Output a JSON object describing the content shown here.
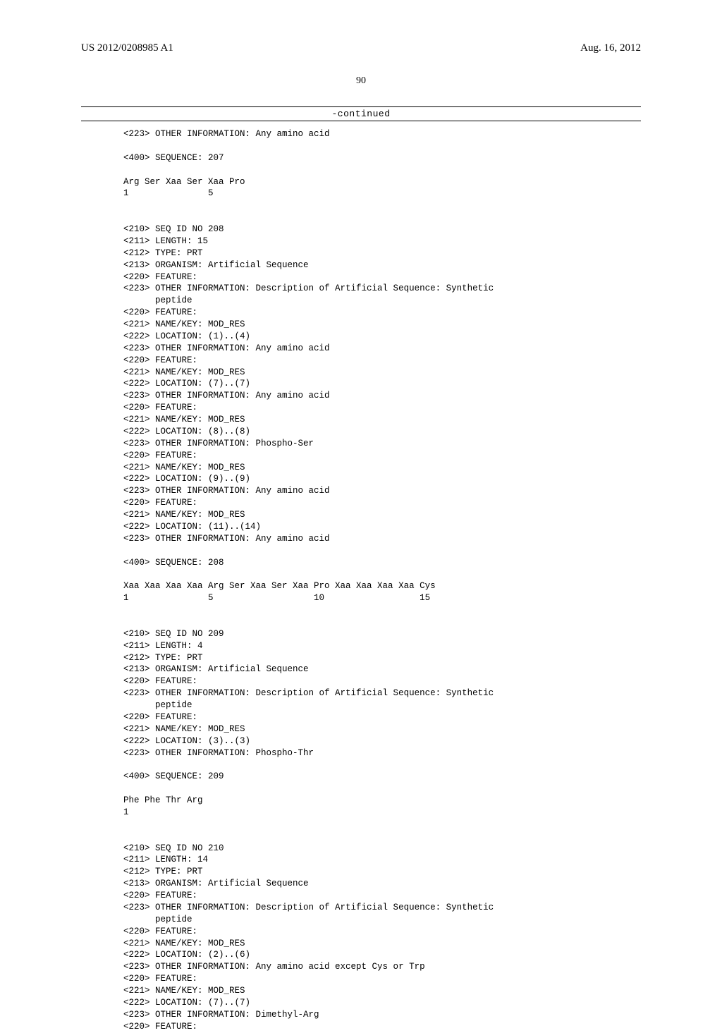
{
  "header": {
    "left": "US 2012/0208985 A1",
    "right": "Aug. 16, 2012"
  },
  "page_number": "90",
  "continued": "-continued",
  "lines": [
    {
      "t": "<223> OTHER INFORMATION: Any amino acid"
    },
    {
      "t": ""
    },
    {
      "t": "<400> SEQUENCE: 207"
    },
    {
      "t": ""
    },
    {
      "t": "Arg Ser Xaa Ser Xaa Pro"
    },
    {
      "t": "1               5"
    },
    {
      "t": ""
    },
    {
      "t": ""
    },
    {
      "t": "<210> SEQ ID NO 208"
    },
    {
      "t": "<211> LENGTH: 15"
    },
    {
      "t": "<212> TYPE: PRT"
    },
    {
      "t": "<213> ORGANISM: Artificial Sequence"
    },
    {
      "t": "<220> FEATURE:"
    },
    {
      "t": "<223> OTHER INFORMATION: Description of Artificial Sequence: Synthetic"
    },
    {
      "t": "      peptide"
    },
    {
      "t": "<220> FEATURE:"
    },
    {
      "t": "<221> NAME/KEY: MOD_RES"
    },
    {
      "t": "<222> LOCATION: (1)..(4)"
    },
    {
      "t": "<223> OTHER INFORMATION: Any amino acid"
    },
    {
      "t": "<220> FEATURE:"
    },
    {
      "t": "<221> NAME/KEY: MOD_RES"
    },
    {
      "t": "<222> LOCATION: (7)..(7)"
    },
    {
      "t": "<223> OTHER INFORMATION: Any amino acid"
    },
    {
      "t": "<220> FEATURE:"
    },
    {
      "t": "<221> NAME/KEY: MOD_RES"
    },
    {
      "t": "<222> LOCATION: (8)..(8)"
    },
    {
      "t": "<223> OTHER INFORMATION: Phospho-Ser"
    },
    {
      "t": "<220> FEATURE:"
    },
    {
      "t": "<221> NAME/KEY: MOD_RES"
    },
    {
      "t": "<222> LOCATION: (9)..(9)"
    },
    {
      "t": "<223> OTHER INFORMATION: Any amino acid"
    },
    {
      "t": "<220> FEATURE:"
    },
    {
      "t": "<221> NAME/KEY: MOD_RES"
    },
    {
      "t": "<222> LOCATION: (11)..(14)"
    },
    {
      "t": "<223> OTHER INFORMATION: Any amino acid"
    },
    {
      "t": ""
    },
    {
      "t": "<400> SEQUENCE: 208"
    },
    {
      "t": ""
    },
    {
      "t": "Xaa Xaa Xaa Xaa Arg Ser Xaa Ser Xaa Pro Xaa Xaa Xaa Xaa Cys"
    },
    {
      "t": "1               5                   10                  15"
    },
    {
      "t": ""
    },
    {
      "t": ""
    },
    {
      "t": "<210> SEQ ID NO 209"
    },
    {
      "t": "<211> LENGTH: 4"
    },
    {
      "t": "<212> TYPE: PRT"
    },
    {
      "t": "<213> ORGANISM: Artificial Sequence"
    },
    {
      "t": "<220> FEATURE:"
    },
    {
      "t": "<223> OTHER INFORMATION: Description of Artificial Sequence: Synthetic"
    },
    {
      "t": "      peptide"
    },
    {
      "t": "<220> FEATURE:"
    },
    {
      "t": "<221> NAME/KEY: MOD_RES"
    },
    {
      "t": "<222> LOCATION: (3)..(3)"
    },
    {
      "t": "<223> OTHER INFORMATION: Phospho-Thr"
    },
    {
      "t": ""
    },
    {
      "t": "<400> SEQUENCE: 209"
    },
    {
      "t": ""
    },
    {
      "t": "Phe Phe Thr Arg"
    },
    {
      "t": "1"
    },
    {
      "t": ""
    },
    {
      "t": ""
    },
    {
      "t": "<210> SEQ ID NO 210"
    },
    {
      "t": "<211> LENGTH: 14"
    },
    {
      "t": "<212> TYPE: PRT"
    },
    {
      "t": "<213> ORGANISM: Artificial Sequence"
    },
    {
      "t": "<220> FEATURE:"
    },
    {
      "t": "<223> OTHER INFORMATION: Description of Artificial Sequence: Synthetic"
    },
    {
      "t": "      peptide"
    },
    {
      "t": "<220> FEATURE:"
    },
    {
      "t": "<221> NAME/KEY: MOD_RES"
    },
    {
      "t": "<222> LOCATION: (2)..(6)"
    },
    {
      "t": "<223> OTHER INFORMATION: Any amino acid except Cys or Trp"
    },
    {
      "t": "<220> FEATURE:"
    },
    {
      "t": "<221> NAME/KEY: MOD_RES"
    },
    {
      "t": "<222> LOCATION: (7)..(7)"
    },
    {
      "t": "<223> OTHER INFORMATION: Dimethyl-Arg"
    },
    {
      "t": "<220> FEATURE:"
    }
  ]
}
